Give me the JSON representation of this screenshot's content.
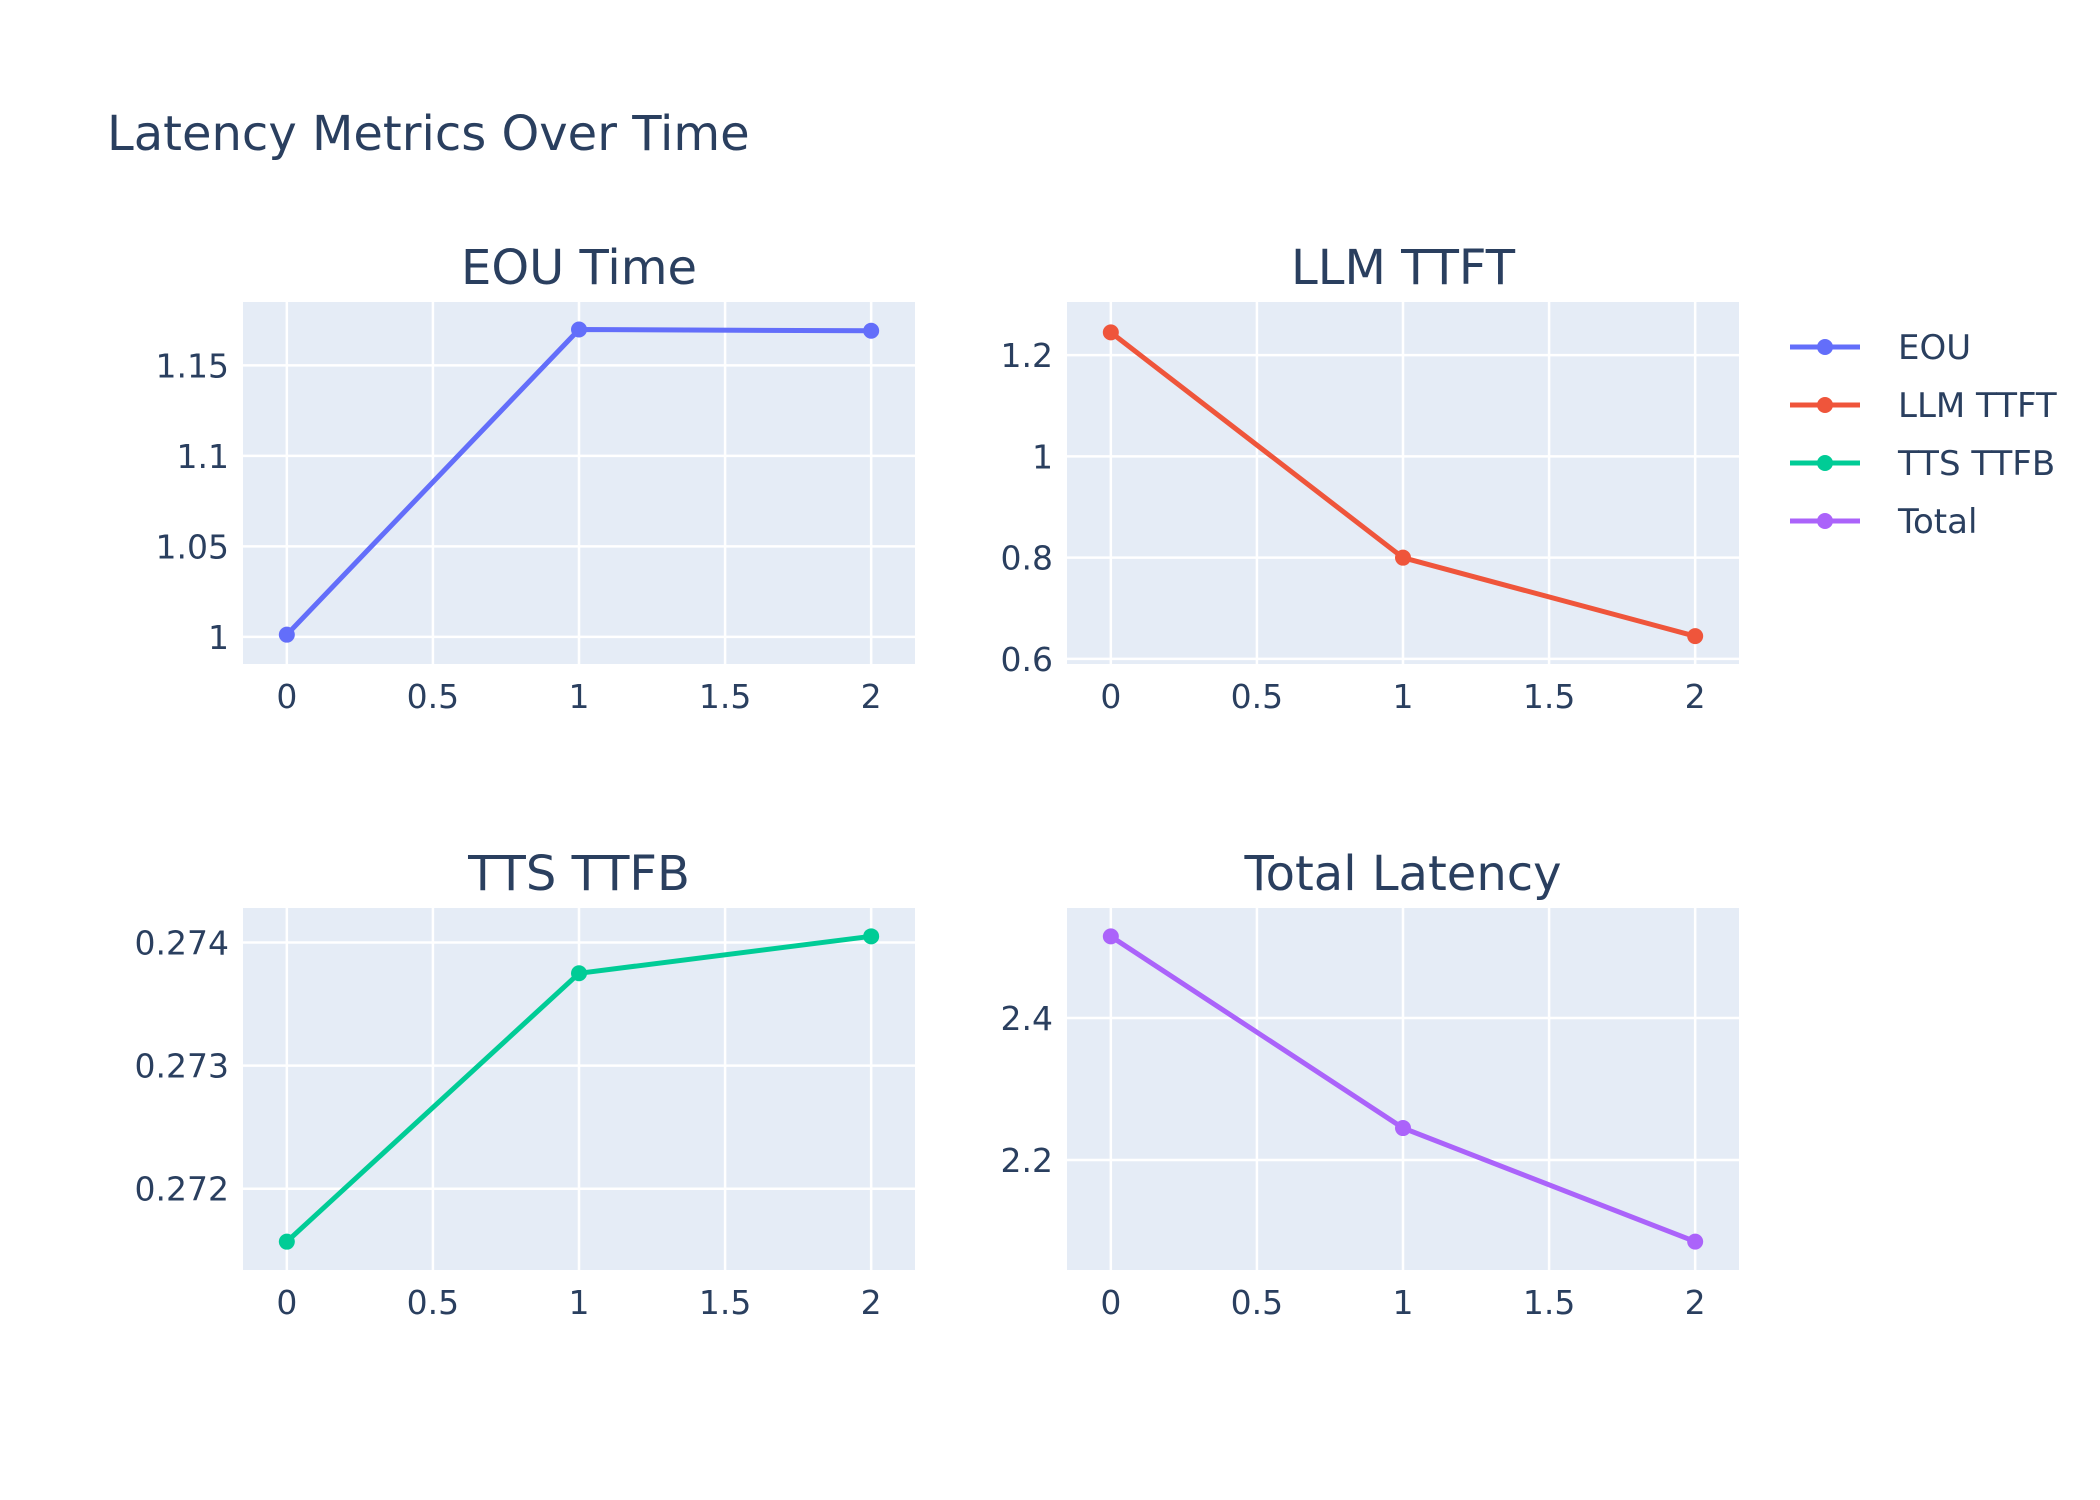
{
  "title": "Latency Metrics Over Time",
  "colors": {
    "plot_bg": "#e5ecf6",
    "grid": "#ffffff",
    "text": "#2a3f5f"
  },
  "legend": {
    "placement": "top-right",
    "items": [
      {
        "label": "EOU",
        "color": "#636efa"
      },
      {
        "label": "LLM TTFT",
        "color": "#ef553b"
      },
      {
        "label": "TTS TTFB",
        "color": "#00cc96"
      },
      {
        "label": "Total",
        "color": "#ab63fa"
      }
    ]
  },
  "chart_data": [
    {
      "type": "line",
      "title": "EOU Time",
      "series": [
        {
          "name": "EOU",
          "color": "#636efa",
          "x": [
            0,
            1,
            2
          ],
          "y": [
            1.0012,
            1.1698,
            1.1691
          ]
        }
      ],
      "xlim": [
        -0.15,
        2.15
      ],
      "ylim": [
        0.985,
        1.185
      ],
      "xticks": [
        0,
        0.5,
        1,
        1.5,
        2
      ],
      "xtick_labels": [
        "0",
        "0.5",
        "1",
        "1.5",
        "2"
      ],
      "yticks": [
        1,
        1.05,
        1.1,
        1.15
      ],
      "ytick_labels": [
        "1",
        "1.05",
        "1.1",
        "1.15"
      ],
      "grid": true
    },
    {
      "type": "line",
      "title": "LLM TTFT",
      "series": [
        {
          "name": "LLM TTFT",
          "color": "#ef553b",
          "x": [
            0,
            1,
            2
          ],
          "y": [
            1.245,
            0.8,
            0.645
          ]
        }
      ],
      "xlim": [
        -0.15,
        2.15
      ],
      "ylim": [
        0.59,
        1.305
      ],
      "xticks": [
        0,
        0.5,
        1,
        1.5,
        2
      ],
      "xtick_labels": [
        "0",
        "0.5",
        "1",
        "1.5",
        "2"
      ],
      "yticks": [
        0.6,
        0.8,
        1,
        1.2
      ],
      "ytick_labels": [
        "0.6",
        "0.8",
        "1",
        "1.2"
      ],
      "grid": true
    },
    {
      "type": "line",
      "title": "TTS TTFB",
      "series": [
        {
          "name": "TTS TTFB",
          "color": "#00cc96",
          "x": [
            0,
            1,
            2
          ],
          "y": [
            0.27157,
            0.27375,
            0.27405
          ]
        }
      ],
      "xlim": [
        -0.15,
        2.15
      ],
      "ylim": [
        0.27134,
        0.27428
      ],
      "xticks": [
        0,
        0.5,
        1,
        1.5,
        2
      ],
      "xtick_labels": [
        "0",
        "0.5",
        "1",
        "1.5",
        "2"
      ],
      "yticks": [
        0.272,
        0.273,
        0.274
      ],
      "ytick_labels": [
        "0.272",
        "0.273",
        "0.274"
      ],
      "grid": true
    },
    {
      "type": "line",
      "title": "Total Latency",
      "series": [
        {
          "name": "Total",
          "color": "#ab63fa",
          "x": [
            0,
            1,
            2
          ],
          "y": [
            2.515,
            2.245,
            2.085
          ]
        }
      ],
      "xlim": [
        -0.15,
        2.15
      ],
      "ylim": [
        2.045,
        2.555
      ],
      "xticks": [
        0,
        0.5,
        1,
        1.5,
        2
      ],
      "xtick_labels": [
        "0",
        "0.5",
        "1",
        "1.5",
        "2"
      ],
      "yticks": [
        2.2,
        2.4
      ],
      "ytick_labels": [
        "2.2",
        "2.4"
      ],
      "grid": true
    }
  ]
}
